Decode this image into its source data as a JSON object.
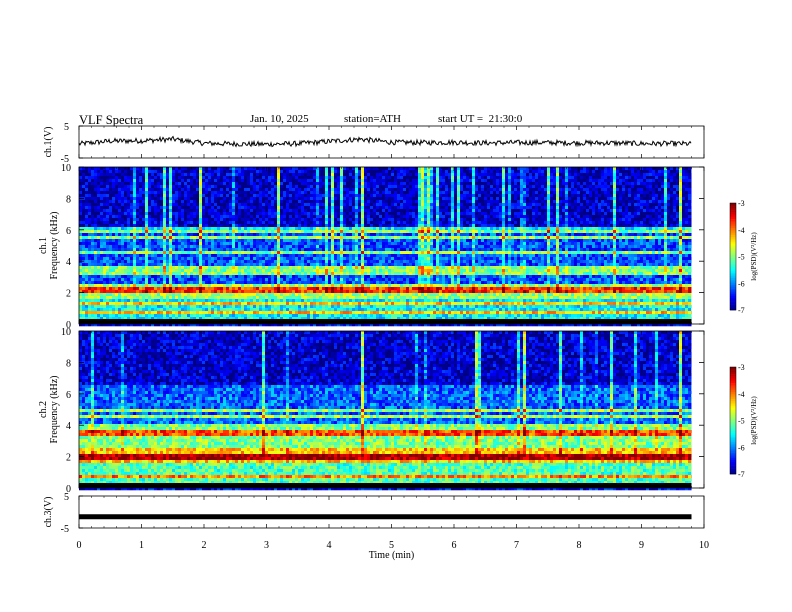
{
  "header": {
    "title": "VLF Spectra",
    "date": "Jan. 10, 2025",
    "station": "station=ATH",
    "start_ut": "start UT =  21:30:0"
  },
  "chart_data": [
    {
      "type": "line",
      "panel": "ch1-waveform",
      "ylabel": "ch.1(V)",
      "ylim": [
        -5,
        5
      ],
      "y_ticks": [
        "5",
        "-5"
      ],
      "xlim": [
        0,
        10
      ],
      "series": [
        {
          "x": [
            0.0,
            0.5,
            1.0,
            1.5,
            2.0,
            2.5,
            3.0,
            3.5,
            4.0,
            4.5,
            5.0,
            5.5,
            6.0,
            6.5,
            7.0,
            7.5,
            8.0,
            8.5,
            9.0,
            9.5,
            9.8
          ],
          "values": [
            -0.6,
            0.3,
            0.4,
            0.9,
            -0.4,
            -0.6,
            -0.7,
            -0.5,
            0.2,
            0.9,
            -0.1,
            -0.2,
            -0.1,
            -0.3,
            -0.2,
            -0.2,
            -0.3,
            -0.3,
            -0.5,
            -0.5,
            -0.6
          ]
        }
      ]
    },
    {
      "type": "heatmap",
      "panel": "ch1-spectrogram",
      "ylabel": "ch.1 Frequency (kHz)",
      "ylim": [
        0,
        10
      ],
      "y_ticks": [
        "0",
        "2",
        "4",
        "6",
        "8",
        "10"
      ],
      "xlim": [
        0,
        9.8
      ],
      "colorbar": {
        "label": "log(PSD)(V²/Hz)",
        "range": [
          -7,
          -3
        ],
        "ticks": [
          "-3",
          "-4",
          "-5",
          "-6",
          "-7"
        ]
      },
      "background_log_psd": [
        {
          "f_range": [
            0,
            1.5
          ],
          "value": -5.5
        },
        {
          "f_range": [
            1.5,
            2.5
          ],
          "value": -4.9
        },
        {
          "f_range": [
            2.5,
            6.0
          ],
          "value": -6.2
        },
        {
          "f_range": [
            6.0,
            10.0
          ],
          "value": -6.7
        }
      ],
      "lines_khz": [
        0.8,
        1.3,
        2.0,
        2.2,
        3.3,
        3.6,
        4.5,
        5.5,
        6.0
      ],
      "burst_times_min": [
        4.5,
        9.6
      ]
    },
    {
      "type": "heatmap",
      "panel": "ch2-spectrogram",
      "ylabel": "ch.2 Frequency (kHz)",
      "ylim": [
        0,
        10
      ],
      "y_ticks": [
        "0",
        "2",
        "4",
        "6",
        "8",
        "10"
      ],
      "xlim": [
        0,
        9.8
      ],
      "colorbar": {
        "label": "log(PSD)(V²/Hz)",
        "range": [
          -7,
          -3
        ],
        "ticks": [
          "-3",
          "-4",
          "-5",
          "-6",
          "-7"
        ]
      },
      "background_log_psd": [
        {
          "f_range": [
            0,
            1.5
          ],
          "value": -5.2
        },
        {
          "f_range": [
            1.5,
            2.5
          ],
          "value": -4.3
        },
        {
          "f_range": [
            2.5,
            4.0
          ],
          "value": -5.0
        },
        {
          "f_range": [
            4.0,
            6.5
          ],
          "value": -6.1
        },
        {
          "f_range": [
            6.5,
            10.0
          ],
          "value": -6.7
        }
      ],
      "lines_khz": [
        0.7,
        1.9,
        2.1,
        3.4,
        3.6,
        4.6,
        5.0
      ],
      "burst_times_min": [
        4.5,
        9.6
      ]
    },
    {
      "type": "line",
      "panel": "ch3-waveform",
      "ylabel": "ch.3(V)",
      "ylim": [
        -5,
        5
      ],
      "y_ticks": [
        "5",
        "-5"
      ],
      "xlim": [
        0,
        10
      ],
      "xlabel": "Time (min)",
      "x_ticks": [
        "0",
        "1",
        "2",
        "3",
        "4",
        "5",
        "6",
        "7",
        "8",
        "9",
        "10"
      ],
      "series": [
        {
          "x": [
            0,
            9.8
          ],
          "values": [
            -1.5,
            -1.5
          ]
        }
      ]
    }
  ]
}
